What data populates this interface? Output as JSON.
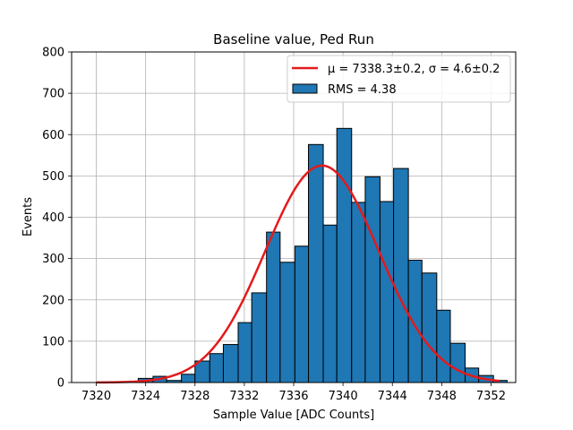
{
  "chart_data": {
    "type": "bar",
    "title": "Baseline value, Ped Run",
    "xlabel": "Sample Value [ADC Counts]",
    "ylabel": "Events",
    "xlim": [
      7318,
      7354
    ],
    "ylim": [
      0,
      800
    ],
    "x_ticks": [
      "7320",
      "7324",
      "7328",
      "7332",
      "7336",
      "7340",
      "7344",
      "7348",
      "7352"
    ],
    "y_ticks": [
      "0",
      "100",
      "200",
      "300",
      "400",
      "500",
      "600",
      "700",
      "800"
    ],
    "grid": true,
    "legend_position": "top-right",
    "histogram": {
      "name": "RMS = 4.38",
      "color": "#1f77b4",
      "edge_color": "#000000",
      "bins": [
        {
          "x0": 7322.3,
          "x1": 7323.4,
          "count": 0
        },
        {
          "x0": 7323.4,
          "x1": 7324.6,
          "count": 10
        },
        {
          "x0": 7324.6,
          "x1": 7325.7,
          "count": 15
        },
        {
          "x0": 7325.7,
          "x1": 7326.9,
          "count": 5
        },
        {
          "x0": 7326.9,
          "x1": 7328.0,
          "count": 20
        },
        {
          "x0": 7328.0,
          "x1": 7329.2,
          "count": 52
        },
        {
          "x0": 7329.2,
          "x1": 7330.3,
          "count": 70
        },
        {
          "x0": 7330.3,
          "x1": 7331.5,
          "count": 92
        },
        {
          "x0": 7331.5,
          "x1": 7332.6,
          "count": 145
        },
        {
          "x0": 7332.6,
          "x1": 7333.8,
          "count": 217
        },
        {
          "x0": 7333.8,
          "x1": 7334.9,
          "count": 364
        },
        {
          "x0": 7334.9,
          "x1": 7336.1,
          "count": 291
        },
        {
          "x0": 7336.1,
          "x1": 7337.2,
          "count": 330
        },
        {
          "x0": 7337.2,
          "x1": 7338.4,
          "count": 576
        },
        {
          "x0": 7338.4,
          "x1": 7339.5,
          "count": 381
        },
        {
          "x0": 7339.5,
          "x1": 7340.7,
          "count": 615
        },
        {
          "x0": 7340.7,
          "x1": 7341.8,
          "count": 436
        },
        {
          "x0": 7341.8,
          "x1": 7343.0,
          "count": 498
        },
        {
          "x0": 7343.0,
          "x1": 7344.1,
          "count": 438
        },
        {
          "x0": 7344.1,
          "x1": 7345.3,
          "count": 518
        },
        {
          "x0": 7345.3,
          "x1": 7346.4,
          "count": 296
        },
        {
          "x0": 7346.4,
          "x1": 7347.6,
          "count": 265
        },
        {
          "x0": 7347.6,
          "x1": 7348.7,
          "count": 175
        },
        {
          "x0": 7348.7,
          "x1": 7349.9,
          "count": 95
        },
        {
          "x0": 7349.9,
          "x1": 7351.0,
          "count": 35
        },
        {
          "x0": 7351.0,
          "x1": 7352.2,
          "count": 17
        },
        {
          "x0": 7352.2,
          "x1": 7353.3,
          "count": 5
        }
      ]
    },
    "fit_curve": {
      "type": "gaussian",
      "color": "#e41a1c",
      "mu": 7338.3,
      "sigma": 4.6,
      "peak": 525,
      "x_range": [
        7320,
        7352.7
      ],
      "legend_label": "μ = 7338.3±0.2, σ = 4.6±0.2"
    }
  }
}
